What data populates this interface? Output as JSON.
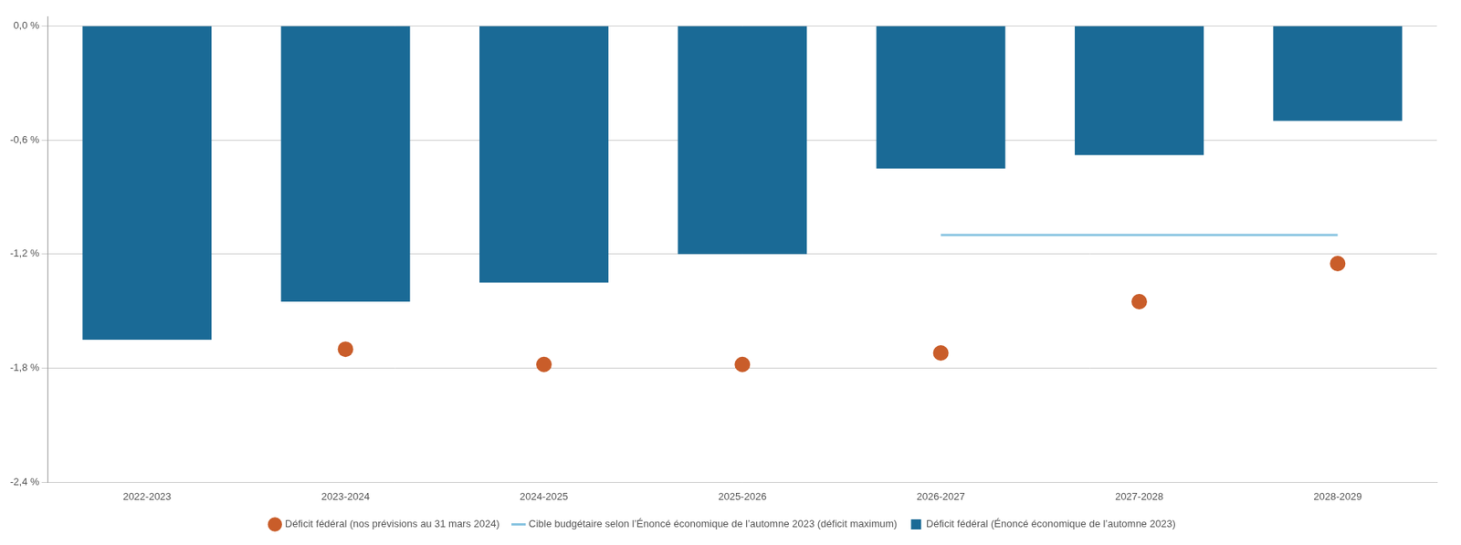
{
  "chart_data": {
    "type": "bar",
    "categories": [
      "2022-2023",
      "2023-2024",
      "2024-2025",
      "2025-2026",
      "2026-2027",
      "2027-2028",
      "2028-2029"
    ],
    "series": [
      {
        "name": "Déficit fédéral (Énoncé économique de l’automne 2023)",
        "type": "bar",
        "color": "#1a6a96",
        "values": [
          -1.65,
          -1.45,
          -1.35,
          -1.2,
          -0.75,
          -0.68,
          -0.5
        ]
      },
      {
        "name": "Déficit fédéral (nos prévisions au 31 mars 2024)",
        "type": "scatter",
        "color": "#c95d2a",
        "marker": "circle",
        "values": [
          null,
          -1.7,
          -1.78,
          -1.78,
          -1.72,
          -1.45,
          -1.25
        ]
      },
      {
        "name": "Cible budgétaire selon l’Énoncé économique de l’automne 2023 (déficit maximum)",
        "type": "line",
        "color": "#89c4e1",
        "line_style": "solid",
        "values": [
          null,
          null,
          null,
          null,
          -1.1,
          -1.1,
          -1.1
        ]
      }
    ],
    "ylim": [
      -2.4,
      0.05
    ],
    "yticks": [
      {
        "value": 0.0,
        "label": "0,0 %"
      },
      {
        "value": -0.6,
        "label": "-0,6 %"
      },
      {
        "value": -1.2,
        "label": "-1,2 %"
      },
      {
        "value": -1.8,
        "label": "-1,8 %"
      },
      {
        "value": -2.4,
        "label": "-2,4 %"
      }
    ],
    "grid": true,
    "legend": "bottom"
  }
}
